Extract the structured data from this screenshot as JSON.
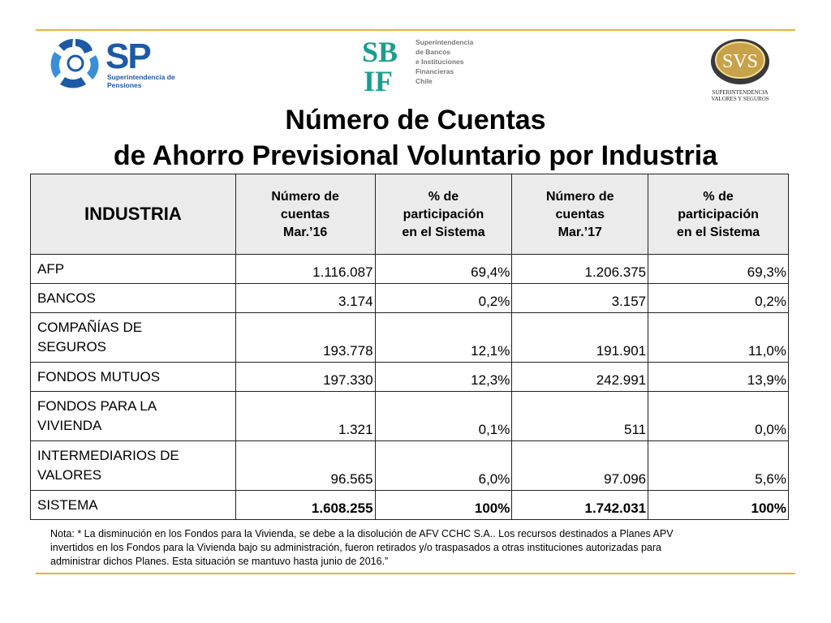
{
  "logos": {
    "sp": {
      "mark": "SP",
      "subtitle": "Superintendencia de Pensiones"
    },
    "sbif": {
      "mark": "SBIF",
      "text_lines": [
        "Superintendencia",
        "de Bancos",
        "e Instituciones",
        "Financieras",
        "Chile"
      ]
    },
    "svs": {
      "mark": "SVS",
      "subtitle_lines": [
        "SUPERINTENDENCIA",
        "VALORES Y SEGUROS"
      ]
    }
  },
  "title": {
    "line1": "Número de Cuentas",
    "line2": "de Ahorro Previsional Voluntario por Industria"
  },
  "table": {
    "headers": {
      "industria": "INDUSTRIA",
      "c1": [
        "Número de",
        "cuentas",
        "Mar.’16"
      ],
      "c2": [
        "% de",
        "participación",
        "en el Sistema"
      ],
      "c3": [
        "Número de",
        "cuentas",
        "Mar.’17"
      ],
      "c4": [
        "% de",
        "participación",
        "en el Sistema"
      ]
    },
    "rows": [
      {
        "name": [
          "AFP"
        ],
        "c1": "1.116.087",
        "c2": "69,4%",
        "c3": "1.206.375",
        "c4": "69,3%"
      },
      {
        "name": [
          "BANCOS"
        ],
        "c1": "3.174",
        "c2": "0,2%",
        "c3": "3.157",
        "c4": "0,2%"
      },
      {
        "name": [
          "COMPAÑÍAS DE",
          "SEGUROS"
        ],
        "c1": "193.778",
        "c2": "12,1%",
        "c3": "191.901",
        "c4": "11,0%"
      },
      {
        "name": [
          "FONDOS MUTUOS"
        ],
        "c1": "197.330",
        "c2": "12,3%",
        "c3": "242.991",
        "c4": "13,9%"
      },
      {
        "name": [
          "FONDOS PARA LA",
          "VIVIENDA"
        ],
        "c1": "1.321",
        "c2": "0,1%",
        "c3": "511",
        "c4": "0,0%"
      },
      {
        "name": [
          "INTERMEDIARIOS DE",
          "VALORES"
        ],
        "c1": "96.565",
        "c2": "6,0%",
        "c3": "97.096",
        "c4": "5,6%"
      },
      {
        "name": [
          "SISTEMA"
        ],
        "c1": "1.608.255",
        "c2": "100%",
        "c3": "1.742.031",
        "c4": "100%"
      }
    ]
  },
  "note": {
    "lines": [
      "Nota: * La disminución en los Fondos para la Vivienda, se debe a la disolución de AFV CCHC S.A.. Los recursos destinados a Planes APV",
      "invertidos en los Fondos para la Vivienda bajo su administración, fueron retirados y/o traspasados a otras instituciones autorizadas para",
      "administrar dichos Planes. Esta situación se mantuvo hasta junio de 2016.”"
    ]
  },
  "colors": {
    "accent_rule": "#e8b13a",
    "sp_blue": "#1c5aa6",
    "sbif_teal": "#1b9d8f",
    "header_bg": "#ebebeb"
  }
}
